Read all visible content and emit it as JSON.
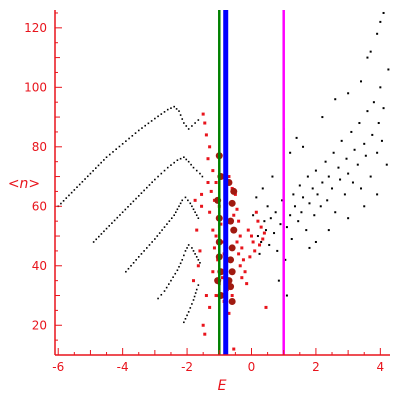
{
  "chart_data": {
    "type": "scatter",
    "title": "",
    "xlabel": "E",
    "ylabel": "<n>",
    "xlim": [
      -6.1,
      4.3
    ],
    "ylim": [
      10,
      126
    ],
    "x_ticks": [
      -6,
      -4,
      -2,
      0,
      2,
      4
    ],
    "x_tick_labels": [
      "-6",
      "-4",
      "-2",
      "0",
      "2",
      "4"
    ],
    "y_ticks": [
      20,
      40,
      60,
      80,
      100,
      120
    ],
    "y_tick_labels": [
      "20",
      "40",
      "60",
      "80",
      "100",
      "120"
    ],
    "grid": false,
    "colors": {
      "axis": "#e8141c",
      "red_points": "#e8141c",
      "big_points": "#a01a10",
      "black_points": "#000000",
      "line_green": "#008000",
      "line_blue": "#0000ff",
      "line_magenta": "#ff00ff"
    },
    "vertical_lines": [
      {
        "x": -1.0,
        "color": "#008000"
      },
      {
        "x": -0.8,
        "color": "#0000ff"
      },
      {
        "x": 1.0,
        "color": "#ff00ff"
      }
    ],
    "series": [
      {
        "color": "#000000",
        "style": "dotted-curve",
        "points": [
          [
            -6.0,
            60
          ],
          [
            -5.5,
            65.5
          ],
          [
            -5.0,
            71
          ],
          [
            -4.5,
            76.5
          ],
          [
            -4.0,
            81
          ],
          [
            -3.5,
            85.5
          ],
          [
            -3.0,
            89.5
          ],
          [
            -2.6,
            92.5
          ],
          [
            -2.4,
            93.5
          ],
          [
            -2.25,
            92
          ],
          [
            -2.1,
            88
          ],
          [
            -1.95,
            86
          ],
          [
            -1.75,
            88
          ],
          [
            -1.55,
            90
          ]
        ]
      },
      {
        "color": "#000000",
        "style": "dotted-curve",
        "points": [
          [
            -4.9,
            48
          ],
          [
            -4.5,
            52.5
          ],
          [
            -4.0,
            58
          ],
          [
            -3.5,
            63.5
          ],
          [
            -3.0,
            69
          ],
          [
            -2.6,
            73
          ],
          [
            -2.3,
            75.5
          ],
          [
            -2.1,
            76.5
          ],
          [
            -1.95,
            75
          ],
          [
            -1.8,
            73
          ],
          [
            -1.6,
            71
          ],
          [
            -1.45,
            69
          ]
        ]
      },
      {
        "color": "#000000",
        "style": "dotted-curve",
        "points": [
          [
            -3.9,
            38
          ],
          [
            -3.5,
            43
          ],
          [
            -3.0,
            49
          ],
          [
            -2.7,
            53
          ],
          [
            -2.4,
            57
          ],
          [
            -2.25,
            60
          ],
          [
            -2.15,
            62
          ],
          [
            -2.05,
            63
          ],
          [
            -1.9,
            61
          ],
          [
            -1.75,
            58
          ],
          [
            -1.6,
            55
          ]
        ]
      },
      {
        "color": "#000000",
        "style": "dotted-curve",
        "points": [
          [
            -2.9,
            29
          ],
          [
            -2.7,
            31.5
          ],
          [
            -2.5,
            35
          ],
          [
            -2.3,
            38.5
          ],
          [
            -2.15,
            42
          ],
          [
            -2.05,
            45
          ],
          [
            -1.95,
            47
          ],
          [
            -1.85,
            46
          ],
          [
            -1.7,
            43
          ],
          [
            -1.55,
            40
          ]
        ]
      },
      {
        "color": "#000000",
        "style": "dotted-curve",
        "points": [
          [
            -2.1,
            21
          ],
          [
            -1.95,
            24.5
          ],
          [
            -1.8,
            28.5
          ],
          [
            -1.7,
            32
          ],
          [
            -1.6,
            35
          ]
        ]
      },
      {
        "color": "#000000",
        "style": "scatter-cloud",
        "points": [
          [
            0.2,
            50
          ],
          [
            0.3,
            48
          ],
          [
            0.4,
            55
          ],
          [
            0.45,
            52
          ],
          [
            0.5,
            60
          ],
          [
            0.55,
            47
          ],
          [
            0.6,
            56
          ],
          [
            0.7,
            51
          ],
          [
            0.75,
            58
          ],
          [
            0.8,
            45
          ],
          [
            0.9,
            54
          ],
          [
            0.95,
            62
          ],
          [
            1.1,
            53
          ],
          [
            1.2,
            57
          ],
          [
            1.25,
            49
          ],
          [
            1.3,
            64
          ],
          [
            1.35,
            60
          ],
          [
            1.45,
            55
          ],
          [
            1.5,
            67
          ],
          [
            1.55,
            58
          ],
          [
            1.6,
            63
          ],
          [
            1.7,
            52
          ],
          [
            1.75,
            70
          ],
          [
            1.8,
            61
          ],
          [
            1.9,
            66
          ],
          [
            1.95,
            57
          ],
          [
            2.0,
            72
          ],
          [
            2.05,
            64
          ],
          [
            2.15,
            60
          ],
          [
            2.2,
            68
          ],
          [
            2.3,
            75
          ],
          [
            2.35,
            62
          ],
          [
            2.4,
            70
          ],
          [
            2.5,
            66
          ],
          [
            2.55,
            78
          ],
          [
            2.6,
            58
          ],
          [
            2.7,
            73
          ],
          [
            2.75,
            69
          ],
          [
            2.8,
            82
          ],
          [
            2.9,
            64
          ],
          [
            2.95,
            76
          ],
          [
            3.0,
            71
          ],
          [
            3.1,
            85
          ],
          [
            3.15,
            68
          ],
          [
            3.2,
            79
          ],
          [
            3.3,
            74
          ],
          [
            3.35,
            88
          ],
          [
            3.4,
            66
          ],
          [
            3.5,
            81
          ],
          [
            3.55,
            77
          ],
          [
            3.6,
            92
          ],
          [
            3.7,
            70
          ],
          [
            3.75,
            84
          ],
          [
            3.8,
            95
          ],
          [
            3.9,
            78
          ],
          [
            3.95,
            88
          ],
          [
            4.0,
            100
          ],
          [
            4.05,
            82
          ],
          [
            4.1,
            93
          ],
          [
            4.2,
            74
          ],
          [
            4.25,
            106
          ],
          [
            1.0,
            86
          ],
          [
            1.2,
            78
          ],
          [
            1.4,
            83
          ],
          [
            1.6,
            80
          ],
          [
            2.2,
            90
          ],
          [
            2.6,
            96
          ],
          [
            3.0,
            98
          ],
          [
            3.4,
            102
          ],
          [
            3.7,
            112
          ],
          [
            3.9,
            118
          ],
          [
            4.0,
            122
          ],
          [
            4.1,
            125
          ],
          [
            3.6,
            110
          ],
          [
            2.0,
            48
          ],
          [
            1.8,
            46
          ],
          [
            2.4,
            52
          ],
          [
            3.0,
            56
          ],
          [
            3.5,
            60
          ],
          [
            3.9,
            64
          ],
          [
            0.85,
            35
          ],
          [
            1.1,
            30
          ],
          [
            1.05,
            42
          ],
          [
            0.65,
            70
          ],
          [
            0.35,
            66
          ],
          [
            0.15,
            63
          ],
          [
            0.05,
            57
          ],
          [
            0.25,
            44
          ]
        ]
      },
      {
        "color": "#e8141c",
        "style": "scatter-cloud",
        "points": [
          [
            -1.5,
            91
          ],
          [
            -1.45,
            88
          ],
          [
            -1.4,
            84
          ],
          [
            -1.3,
            80
          ],
          [
            -1.35,
            76
          ],
          [
            -1.2,
            72
          ],
          [
            -1.1,
            68
          ],
          [
            -1.25,
            65
          ],
          [
            -1.15,
            62
          ],
          [
            -1.0,
            60
          ],
          [
            -1.3,
            58
          ],
          [
            -1.05,
            56
          ],
          [
            -0.95,
            54
          ],
          [
            -1.2,
            52
          ],
          [
            -1.1,
            50
          ],
          [
            -0.9,
            48
          ],
          [
            -1.15,
            46
          ],
          [
            -0.85,
            44
          ],
          [
            -1.05,
            42
          ],
          [
            -0.8,
            40
          ],
          [
            -1.2,
            38
          ],
          [
            -0.9,
            36
          ],
          [
            -1.0,
            34
          ],
          [
            -0.75,
            32
          ],
          [
            -1.1,
            30
          ],
          [
            -0.85,
            28
          ],
          [
            -1.3,
            26
          ],
          [
            -0.7,
            70
          ],
          [
            -0.6,
            66
          ],
          [
            -0.5,
            64
          ],
          [
            -0.65,
            61
          ],
          [
            -0.45,
            59
          ],
          [
            -0.55,
            57
          ],
          [
            -0.4,
            55
          ],
          [
            -0.5,
            52
          ],
          [
            -0.35,
            50
          ],
          [
            -0.45,
            48
          ],
          [
            -0.3,
            46
          ],
          [
            -0.4,
            44
          ],
          [
            -0.25,
            42
          ],
          [
            -0.35,
            40
          ],
          [
            -0.2,
            38
          ],
          [
            -0.3,
            36
          ],
          [
            -0.15,
            34
          ],
          [
            -0.1,
            52
          ],
          [
            0.0,
            50
          ],
          [
            0.05,
            48
          ],
          [
            0.1,
            45
          ],
          [
            -0.05,
            43
          ],
          [
            0.15,
            58
          ],
          [
            0.2,
            55
          ],
          [
            0.25,
            47
          ],
          [
            0.3,
            53
          ],
          [
            0.35,
            49
          ],
          [
            0.4,
            51
          ],
          [
            -1.6,
            45
          ],
          [
            -1.7,
            52
          ],
          [
            -1.55,
            60
          ],
          [
            -1.75,
            62
          ],
          [
            -1.65,
            40
          ],
          [
            -1.8,
            35
          ],
          [
            -1.4,
            30
          ],
          [
            -1.5,
            20
          ],
          [
            -1.45,
            17
          ],
          [
            -0.55,
            12
          ],
          [
            0.45,
            26
          ],
          [
            -0.7,
            24
          ],
          [
            -0.6,
            30
          ],
          [
            -1.35,
            68
          ],
          [
            -1.55,
            64
          ]
        ]
      },
      {
        "color": "#a01a10",
        "style": "scatter-cloud",
        "points": [
          [
            -1.0,
            77
          ],
          [
            -0.95,
            70
          ],
          [
            -0.7,
            68
          ],
          [
            -1.05,
            62
          ],
          [
            -0.6,
            61
          ],
          [
            -1.0,
            56
          ],
          [
            -0.65,
            55
          ],
          [
            -0.55,
            52
          ],
          [
            -1.0,
            48
          ],
          [
            -0.6,
            46
          ],
          [
            -1.0,
            43
          ],
          [
            -0.65,
            42
          ],
          [
            -0.95,
            38
          ],
          [
            -0.6,
            38
          ],
          [
            -1.05,
            35
          ],
          [
            -0.7,
            35
          ],
          [
            -0.95,
            30
          ],
          [
            -0.6,
            28
          ],
          [
            -0.65,
            33
          ],
          [
            -0.55,
            65
          ]
        ]
      }
    ]
  }
}
